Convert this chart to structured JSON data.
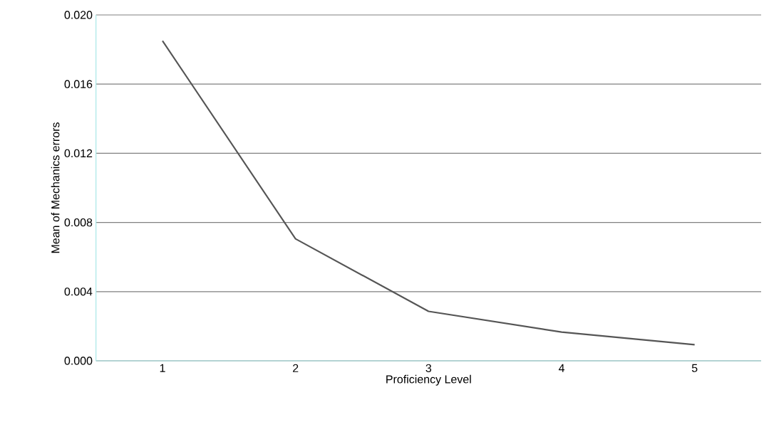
{
  "chart_data": {
    "type": "line",
    "xlabel": "Proficiency Level",
    "ylabel": "Mean of Mechanics errors",
    "categories": [
      "1",
      "2",
      "3",
      "4",
      "5"
    ],
    "series": [
      {
        "color": "#555555",
        "values": [
          0.0185,
          0.00705,
          0.00286,
          0.00166,
          0.00093
        ]
      }
    ],
    "ylim": [
      0,
      0.02
    ],
    "yticks": [
      {
        "value": 0,
        "label": "0.000"
      },
      {
        "value": 0.004,
        "label": "0.004"
      },
      {
        "value": 0.008,
        "label": "0.008"
      },
      {
        "value": 0.012,
        "label": "0.012"
      },
      {
        "value": 0.016,
        "label": "0.016"
      },
      {
        "value": 0.02,
        "label": "0.020"
      }
    ],
    "grid": "y",
    "marker": "none",
    "line_style": "solid"
  }
}
